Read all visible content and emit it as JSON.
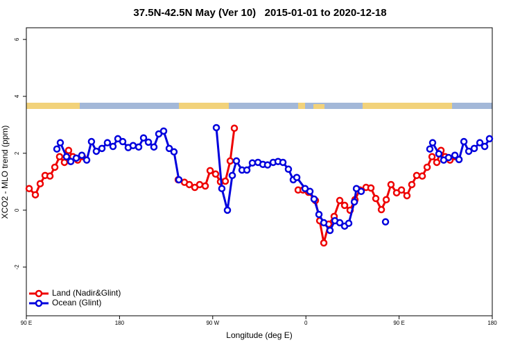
{
  "chart_data": {
    "type": "line",
    "title": "37.5N-42.5N May (Ver 10)   2015-01-01 to 2020-12-18",
    "x_label": "Longitude (deg E)",
    "y_label": "XCO2 - MLO trend (ppm)",
    "xlim": [
      90,
      540
    ],
    "ylim": [
      -3.71,
      6.41
    ],
    "xticks": [
      {
        "value": 90,
        "label": "90 E"
      },
      180,
      {
        "value": 270,
        "label": "90 W"
      },
      {
        "value": 360,
        "label": "0"
      },
      {
        "value": 450,
        "label": "90 E"
      },
      {
        "value": 540,
        "label": "180"
      }
    ],
    "yticks": [
      -2,
      0,
      2,
      4,
      6
    ],
    "legend": "bottom-left",
    "series": [
      {
        "name": "Land (Nadir&Glint)",
        "color": "#ee0000",
        "x": [
          92.7,
          98.7,
          103.4,
          108.1,
          112.8,
          117.5,
          122.1,
          126.8,
          130.8,
          134.9,
          139.6,
          144.2,
          null,
          236.7,
          242.7,
          247.4,
          252.7,
          257.4,
          262.8,
          267.5,
          272.8,
          277.5,
          282.2,
          286.9,
          290.9,
          null,
          352.5,
          357.2,
          362.5,
          369.2,
          373.3,
          377.3,
          382.0,
          387.3,
          392.7,
          397.4,
          402.7,
          407.4,
          412.1,
          418.1,
          422.8,
          427.5,
          432.9,
          437.6,
          442.2,
          447.6,
          452.3,
          457.6,
          462.3,
          467.0,
          472.4,
          477.1,
          481.8,
          486.4,
          490.5,
          494.5,
          499.2,
          503.9
        ],
        "values": [
          0.76,
          0.54,
          0.93,
          1.22,
          1.2,
          1.51,
          1.88,
          1.68,
          2.1,
          1.88,
          1.76,
          1.88,
          null,
          1.07,
          0.98,
          0.9,
          0.8,
          0.9,
          0.85,
          1.39,
          1.27,
          1.0,
          1.02,
          1.73,
          2.88,
          null,
          0.71,
          0.71,
          0.63,
          0.34,
          -0.37,
          -1.15,
          -0.49,
          -0.22,
          0.34,
          0.17,
          0.0,
          0.37,
          0.71,
          0.8,
          0.78,
          0.41,
          0.02,
          0.37,
          0.9,
          0.61,
          0.71,
          0.51,
          0.9,
          1.22,
          1.2,
          1.51,
          1.88,
          1.68,
          2.1,
          1.88,
          1.76,
          1.88
        ]
      },
      {
        "name": "Ocean (Glint)",
        "color": "#0000dd",
        "x": [
          119.5,
          122.8,
          128.8,
          132.9,
          138.2,
          143.6,
          148.3,
          152.9,
          157.6,
          163.0,
          168.3,
          173.7,
          178.4,
          183.1,
          188.4,
          193.1,
          198.5,
          203.2,
          207.9,
          213.2,
          217.9,
          222.6,
          228.0,
          232.6,
          237.3,
          null,
          273.5,
          278.8,
          284.2,
          288.9,
          292.9,
          298.3,
          303.0,
          308.3,
          313.7,
          318.4,
          323.0,
          328.4,
          333.1,
          337.8,
          343.1,
          347.8,
          351.2,
          359.2,
          363.9,
          367.9,
          372.6,
          377.3,
          383.3,
          388.0,
          392.7,
          397.4,
          401.4,
          406.8,
          408.8,
          413.4,
          null,
          436.9,
          null,
          479.7,
          482.4,
          488.4,
          493.1,
          497.8,
          503.9,
          507.9,
          512.6,
          517.3,
          522.6,
          528.0,
          532.7,
          537.3
        ],
        "values": [
          2.15,
          2.37,
          1.88,
          1.71,
          1.83,
          1.93,
          1.76,
          2.41,
          2.07,
          2.17,
          2.37,
          2.24,
          2.51,
          2.41,
          2.2,
          2.27,
          2.22,
          2.54,
          2.39,
          2.22,
          2.68,
          2.78,
          2.17,
          2.05,
          1.07,
          null,
          2.9,
          0.76,
          0.0,
          1.22,
          1.73,
          1.41,
          1.41,
          1.66,
          1.68,
          1.61,
          1.59,
          1.68,
          1.71,
          1.68,
          1.44,
          1.07,
          1.15,
          0.76,
          0.66,
          0.39,
          -0.15,
          -0.44,
          -0.71,
          -0.37,
          -0.44,
          -0.56,
          -0.46,
          0.29,
          0.76,
          0.66,
          null,
          -0.41,
          null,
          2.15,
          2.37,
          1.98,
          1.76,
          1.85,
          1.93,
          1.78,
          2.41,
          2.07,
          2.17,
          2.37,
          2.24,
          2.51
        ]
      }
    ]
  }
}
